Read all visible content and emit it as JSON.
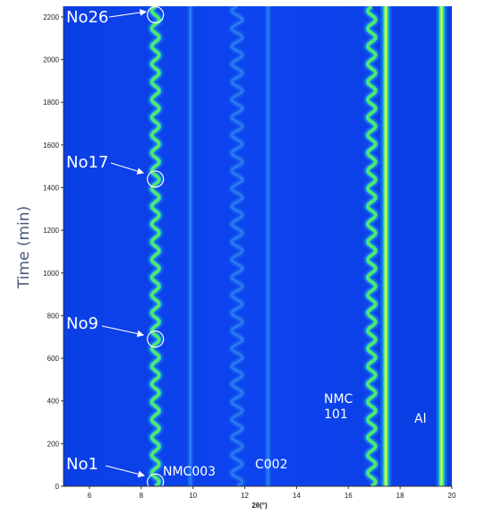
{
  "chart_data": {
    "type": "heatmap",
    "xlabel": "2θ(°)",
    "ylabel": "Time (min)",
    "xlim": [
      5,
      20
    ],
    "ylim": [
      0,
      2250
    ],
    "x_ticks": [
      "6",
      "8",
      "10",
      "12",
      "14",
      "16",
      "18",
      "20"
    ],
    "y_ticks": [
      "0",
      "200",
      "400",
      "600",
      "800",
      "1000",
      "1200",
      "1400",
      "1600",
      "1800",
      "2000",
      "2200"
    ],
    "peaks": [
      {
        "name": "NMC003",
        "x": 8.55,
        "oscillating": true,
        "amplitude": 0.14,
        "intensity": "high"
      },
      {
        "name": "",
        "x": 9.9,
        "oscillating": false,
        "amplitude": 0,
        "intensity": "faint"
      },
      {
        "name": "",
        "x": 11.7,
        "oscillating": true,
        "amplitude": 0.2,
        "intensity": "faint"
      },
      {
        "name": "C002",
        "x": 12.9,
        "oscillating": false,
        "amplitude": 0,
        "intensity": "faint"
      },
      {
        "name": "NMC 101",
        "x": 16.9,
        "oscillating": true,
        "amplitude": 0.15,
        "intensity": "high"
      },
      {
        "name": "",
        "x": 17.45,
        "oscillating": false,
        "amplitude": 0,
        "intensity": "very high"
      },
      {
        "name": "Al",
        "x": 19.6,
        "oscillating": false,
        "amplitude": 0,
        "intensity": "very high"
      }
    ],
    "cycles_count": 27,
    "colors": {
      "background": "#0c40ee",
      "peak_core": "#3fe05c",
      "peak_glow": "#1fb0e8"
    },
    "annotations": [
      {
        "label": "No26",
        "time": 2210,
        "two_theta": 8.55
      },
      {
        "label": "No17",
        "time": 1440,
        "two_theta": 8.55
      },
      {
        "label": "No9",
        "time": 690,
        "two_theta": 8.55
      },
      {
        "label": "No1",
        "time": 20,
        "two_theta": 8.55
      }
    ],
    "peak_labels": [
      {
        "lines": [
          "NMC003"
        ]
      },
      {
        "lines": [
          "C002"
        ]
      },
      {
        "lines": [
          "NMC",
          "101"
        ]
      },
      {
        "lines": [
          "Al"
        ]
      }
    ]
  }
}
